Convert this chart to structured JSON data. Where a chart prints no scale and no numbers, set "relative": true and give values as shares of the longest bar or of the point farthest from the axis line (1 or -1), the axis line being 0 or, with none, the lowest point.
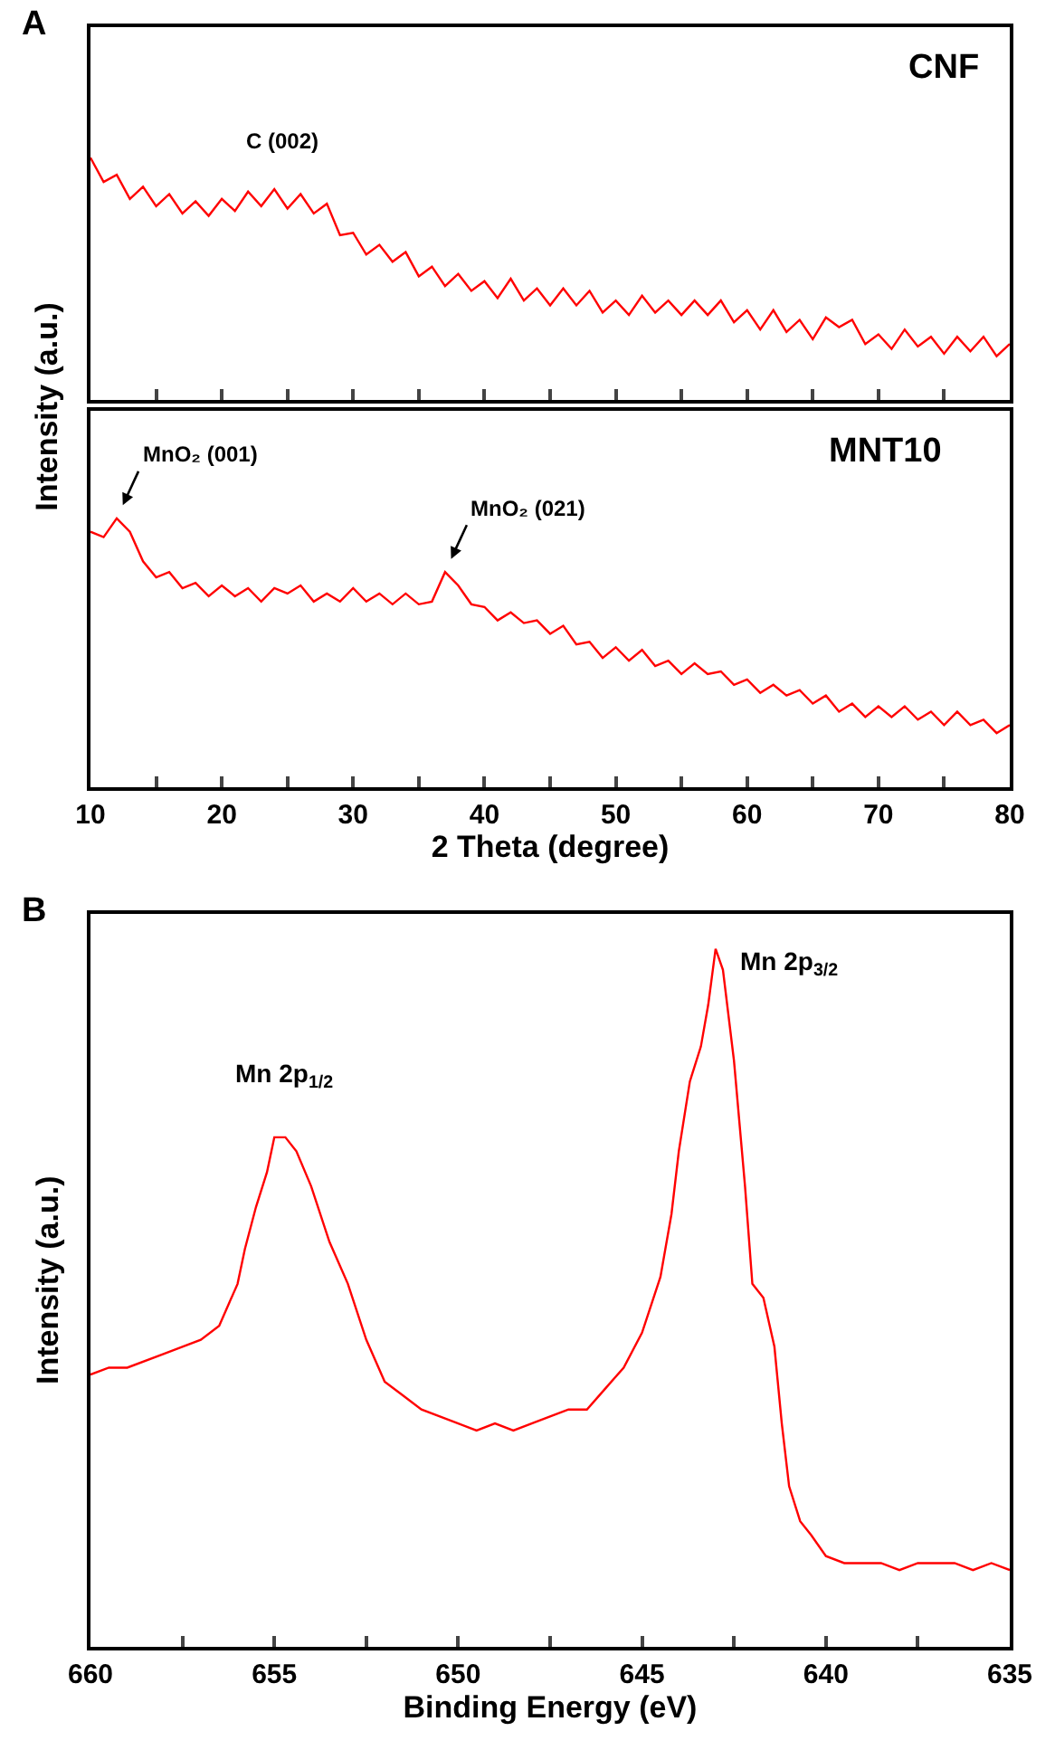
{
  "chart_data": [
    {
      "type": "line",
      "title": "A",
      "ylabel": "Intensity (a.u.)",
      "relative": true,
      "xlim": [
        10,
        80
      ],
      "tick_labels": false,
      "xticks": [
        {
          "value": 10,
          "label": null
        },
        {
          "value": 15,
          "label": null
        },
        {
          "value": 20,
          "label": null
        },
        {
          "value": 25,
          "label": null
        },
        {
          "value": 30,
          "label": null
        },
        {
          "value": 35,
          "label": null
        },
        {
          "value": 40,
          "label": null
        },
        {
          "value": 45,
          "label": null
        },
        {
          "value": 50,
          "label": null
        },
        {
          "value": 55,
          "label": null
        },
        {
          "value": 60,
          "label": null
        },
        {
          "value": 65,
          "label": null
        },
        {
          "value": 70,
          "label": null
        },
        {
          "value": 75,
          "label": null
        },
        {
          "value": 80,
          "label": null
        }
      ],
      "annotations": [
        {
          "text": "C (002)",
          "x": 24,
          "y": 0.87
        }
      ],
      "x": [
        10,
        11,
        12,
        13,
        14,
        15,
        16,
        17,
        18,
        19,
        20,
        21,
        22,
        23,
        24,
        25,
        26,
        27,
        28,
        29,
        30,
        31,
        32,
        33,
        34,
        35,
        36,
        37,
        38,
        39,
        40,
        41,
        42,
        43,
        44,
        45,
        46,
        47,
        48,
        49,
        50,
        51,
        52,
        53,
        54,
        55,
        56,
        57,
        58,
        59,
        60,
        61,
        62,
        63,
        64,
        65,
        66,
        67,
        68,
        69,
        70,
        71,
        72,
        73,
        74,
        75,
        76,
        77,
        78,
        79,
        80
      ],
      "series": [
        {
          "name": "CNF",
          "color": "#ff0000",
          "values": [
            1.0,
            0.9,
            0.93,
            0.83,
            0.88,
            0.8,
            0.85,
            0.77,
            0.82,
            0.76,
            0.83,
            0.78,
            0.86,
            0.8,
            0.87,
            0.79,
            0.85,
            0.77,
            0.81,
            0.68,
            0.69,
            0.6,
            0.64,
            0.57,
            0.61,
            0.51,
            0.55,
            0.47,
            0.52,
            0.45,
            0.49,
            0.42,
            0.5,
            0.41,
            0.46,
            0.39,
            0.46,
            0.39,
            0.45,
            0.36,
            0.41,
            0.35,
            0.43,
            0.36,
            0.41,
            0.35,
            0.41,
            0.35,
            0.41,
            0.32,
            0.37,
            0.29,
            0.37,
            0.28,
            0.33,
            0.25,
            0.34,
            0.3,
            0.33,
            0.23,
            0.27,
            0.21,
            0.29,
            0.22,
            0.26,
            0.19,
            0.26,
            0.2,
            0.26,
            0.18,
            0.23
          ]
        }
      ]
    },
    {
      "type": "line",
      "xlabel": "2 Theta (degree)",
      "relative": true,
      "xlim": [
        10,
        80
      ],
      "tick_labels": "x",
      "xticks": [
        10,
        {
          "value": 15,
          "label": null
        },
        20,
        {
          "value": 25,
          "label": null
        },
        30,
        {
          "value": 35,
          "label": null
        },
        40,
        {
          "value": 45,
          "label": null
        },
        50,
        {
          "value": 55,
          "label": null
        },
        60,
        {
          "value": 65,
          "label": null
        },
        70,
        {
          "value": 75,
          "label": null
        },
        80
      ],
      "annotations": [
        {
          "text": "MnO₂ (001)",
          "x": 12,
          "y": 1.0
        },
        {
          "text": "MnO₂ (021)",
          "x": 37,
          "y": 0.8
        }
      ],
      "x": [
        10,
        11,
        12,
        13,
        14,
        15,
        16,
        17,
        18,
        19,
        20,
        21,
        22,
        23,
        24,
        25,
        26,
        27,
        28,
        29,
        30,
        31,
        32,
        33,
        34,
        35,
        36,
        37,
        38,
        39,
        40,
        41,
        42,
        43,
        44,
        45,
        46,
        47,
        48,
        49,
        50,
        51,
        52,
        53,
        54,
        55,
        56,
        57,
        58,
        59,
        60,
        61,
        62,
        63,
        64,
        65,
        66,
        67,
        68,
        69,
        70,
        71,
        72,
        73,
        74,
        75,
        76,
        77,
        78,
        79,
        80
      ],
      "series": [
        {
          "name": "MNT10",
          "color": "#ff0000",
          "values": [
            0.95,
            0.93,
            1.0,
            0.95,
            0.84,
            0.78,
            0.8,
            0.74,
            0.76,
            0.71,
            0.75,
            0.71,
            0.74,
            0.69,
            0.74,
            0.72,
            0.75,
            0.69,
            0.72,
            0.69,
            0.74,
            0.69,
            0.72,
            0.68,
            0.72,
            0.68,
            0.69,
            0.8,
            0.75,
            0.68,
            0.67,
            0.62,
            0.65,
            0.61,
            0.62,
            0.57,
            0.6,
            0.53,
            0.54,
            0.48,
            0.52,
            0.47,
            0.51,
            0.45,
            0.47,
            0.42,
            0.46,
            0.42,
            0.43,
            0.38,
            0.4,
            0.35,
            0.38,
            0.34,
            0.36,
            0.31,
            0.34,
            0.28,
            0.31,
            0.26,
            0.3,
            0.26,
            0.3,
            0.25,
            0.28,
            0.23,
            0.28,
            0.23,
            0.25,
            0.2,
            0.23
          ]
        }
      ]
    },
    {
      "type": "line",
      "title": "B",
      "xlabel": "Binding Energy (eV)",
      "ylabel": "Intensity (a.u.)",
      "relative": true,
      "xlim": [
        660,
        635
      ],
      "tick_labels": "x",
      "xticks": [
        660,
        {
          "value": 657.5,
          "label": null
        },
        655,
        {
          "value": 652.5,
          "label": null
        },
        650,
        {
          "value": 647.5,
          "label": null
        },
        645,
        {
          "value": 642.5,
          "label": null
        },
        640,
        {
          "value": 637.5,
          "label": null
        },
        635
      ],
      "annotations": [
        {
          "text": "Mn 2p$_{1/2}$",
          "x": 655,
          "y": 0.73
        },
        {
          "text": "Mn 2p$_{3/2}$",
          "x": 643,
          "y": 1.0
        }
      ],
      "x": [
        660,
        659.5,
        659,
        658,
        657.5,
        657,
        656.5,
        656,
        655.8,
        655.5,
        655.2,
        655,
        654.7,
        654.4,
        654,
        653.5,
        653,
        652.5,
        652,
        651.5,
        651,
        650.5,
        650,
        649.5,
        649,
        648.5,
        648,
        647.5,
        647,
        646.5,
        646,
        645.5,
        645,
        644.5,
        644.2,
        644,
        643.7,
        643.4,
        643.2,
        643,
        642.8,
        642.5,
        642.2,
        642,
        641.7,
        641.4,
        641.2,
        641,
        640.7,
        640.4,
        640,
        639.5,
        639,
        638.5,
        638,
        637.5,
        637,
        636.5,
        636,
        635.5,
        635
      ],
      "series": [
        {
          "color": "#ff0000",
          "values": [
            0.39,
            0.4,
            0.4,
            0.42,
            0.43,
            0.44,
            0.46,
            0.52,
            0.57,
            0.63,
            0.68,
            0.73,
            0.73,
            0.71,
            0.66,
            0.58,
            0.52,
            0.44,
            0.38,
            0.36,
            0.34,
            0.33,
            0.32,
            0.31,
            0.32,
            0.31,
            0.32,
            0.33,
            0.34,
            0.34,
            0.37,
            0.4,
            0.45,
            0.53,
            0.62,
            0.71,
            0.81,
            0.86,
            0.92,
            1.0,
            0.97,
            0.84,
            0.66,
            0.52,
            0.5,
            0.43,
            0.32,
            0.23,
            0.18,
            0.16,
            0.13,
            0.12,
            0.12,
            0.12,
            0.11,
            0.12,
            0.12,
            0.12,
            0.11,
            0.12,
            0.11
          ]
        }
      ]
    }
  ]
}
